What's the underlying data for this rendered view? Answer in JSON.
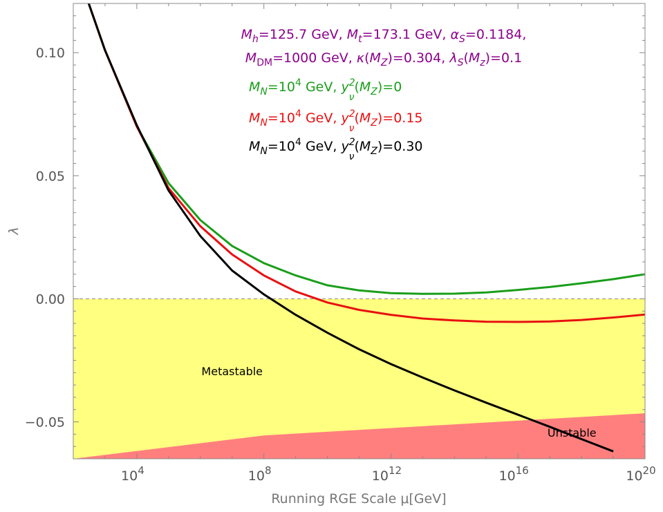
{
  "chart_data": {
    "type": "line",
    "title": "",
    "xlabel": "Running RGE Scale μ[GeV]",
    "ylabel": "λ",
    "x_scale": "log",
    "xlim": [
      100,
      1e+20
    ],
    "ylim": [
      -0.065,
      0.12
    ],
    "grid": false,
    "x_ticks": [
      {
        "value": 10000,
        "base": "10",
        "exp": "4"
      },
      {
        "value": 100000000.0,
        "base": "10",
        "exp": "8"
      },
      {
        "value": 1000000000000.0,
        "base": "10",
        "exp": "12"
      },
      {
        "value": 1e+16,
        "base": "10",
        "exp": "16"
      },
      {
        "value": 1e+20,
        "base": "10",
        "exp": "20"
      }
    ],
    "y_ticks": [
      {
        "value": 0.1,
        "label": "0.10"
      },
      {
        "value": 0.05,
        "label": "0.05"
      },
      {
        "value": 0.0,
        "label": "0.00"
      },
      {
        "value": -0.05,
        "label": "−0.05"
      }
    ],
    "annotations": {
      "params_line1": [
        {
          "t": "M",
          "s": "i"
        },
        {
          "t": "h",
          "s": "sub-i"
        },
        {
          "t": "=125.7 GeV, "
        },
        {
          "t": "M",
          "s": "i"
        },
        {
          "t": "t",
          "s": "sub-i"
        },
        {
          "t": "=173.1 GeV, "
        },
        {
          "t": "α",
          "s": "i"
        },
        {
          "t": "S",
          "s": "sub-i"
        },
        {
          "t": "=0.1184,"
        }
      ],
      "params_line2": [
        {
          "t": "M",
          "s": "i"
        },
        {
          "t": "DM",
          "s": "sub"
        },
        {
          "t": "=1000 GeV, "
        },
        {
          "t": "κ",
          "s": "i"
        },
        {
          "t": "("
        },
        {
          "t": "M",
          "s": "i"
        },
        {
          "t": "Z",
          "s": "sub-i"
        },
        {
          "t": ")=0.304, "
        },
        {
          "t": "λ",
          "s": "i"
        },
        {
          "t": "S",
          "s": "sub-i"
        },
        {
          "t": "("
        },
        {
          "t": "M",
          "s": "i"
        },
        {
          "t": "z",
          "s": "sub-i"
        },
        {
          "t": ")=0.1"
        }
      ],
      "params_color": "#8b008b"
    },
    "series": [
      {
        "legend_label": [
          {
            "t": "M",
            "s": "i"
          },
          {
            "t": "N",
            "s": "sub-i"
          },
          {
            "t": "=10"
          },
          {
            "t": "4",
            "s": "sup"
          },
          {
            "t": " GeV, "
          },
          {
            "t": "y",
            "s": "i"
          },
          {
            "t": "2",
            "s": "supsub-sup"
          },
          {
            "t": "ν",
            "s": "supsub-sub"
          },
          {
            "t": "("
          },
          {
            "t": "M",
            "s": "i"
          },
          {
            "t": "Z",
            "s": "sub-i"
          },
          {
            "t": ")=0"
          }
        ],
        "color": "#1a9e1a",
        "x": [
          100,
          1000,
          10000,
          100000,
          1000000.0,
          10000000.0,
          100000000.0,
          1000000000.0,
          10000000000.0,
          100000000000.0,
          1000000000000.0,
          10000000000000.0,
          100000000000000.0,
          1000000000000000.0,
          1e+16,
          1e+17,
          1e+18,
          1e+19,
          1e+20
        ],
        "y": [
          0.138,
          0.101,
          0.07,
          0.047,
          0.032,
          0.0215,
          0.0145,
          0.0095,
          0.0055,
          0.0034,
          0.0023,
          0.002,
          0.0021,
          0.0026,
          0.0036,
          0.0048,
          0.0063,
          0.008,
          0.01
        ]
      },
      {
        "legend_label": [
          {
            "t": "M",
            "s": "i"
          },
          {
            "t": "N",
            "s": "sub-i"
          },
          {
            "t": "=10"
          },
          {
            "t": "4",
            "s": "sup"
          },
          {
            "t": " GeV, "
          },
          {
            "t": "y",
            "s": "i"
          },
          {
            "t": "2",
            "s": "supsub-sup"
          },
          {
            "t": "ν",
            "s": "supsub-sub"
          },
          {
            "t": "("
          },
          {
            "t": "M",
            "s": "i"
          },
          {
            "t": "Z",
            "s": "sub-i"
          },
          {
            "t": ")=0.15"
          }
        ],
        "color": "#e81010",
        "x": [
          100,
          1000,
          10000,
          100000,
          1000000.0,
          10000000.0,
          100000000.0,
          1000000000.0,
          10000000000.0,
          100000000000.0,
          1000000000000.0,
          10000000000000.0,
          100000000000000.0,
          1000000000000000.0,
          1e+16,
          1e+17,
          1e+18,
          1e+19,
          1e+20
        ],
        "y": [
          0.138,
          0.101,
          0.07,
          0.045,
          0.0295,
          0.018,
          0.0095,
          0.003,
          -0.0015,
          -0.0045,
          -0.0065,
          -0.008,
          -0.0088,
          -0.0093,
          -0.0094,
          -0.0092,
          -0.0086,
          -0.0076,
          -0.0064
        ]
      },
      {
        "legend_label": [
          {
            "t": "M",
            "s": "i"
          },
          {
            "t": "N",
            "s": "sub-i"
          },
          {
            "t": "=10"
          },
          {
            "t": "4",
            "s": "sup"
          },
          {
            "t": " GeV, "
          },
          {
            "t": "y",
            "s": "i"
          },
          {
            "t": "2",
            "s": "supsub-sup"
          },
          {
            "t": "ν",
            "s": "supsub-sub"
          },
          {
            "t": "("
          },
          {
            "t": "M",
            "s": "i"
          },
          {
            "t": "Z",
            "s": "sub-i"
          },
          {
            "t": ")=0.30"
          }
        ],
        "color": "#000000",
        "x": [
          100,
          1000,
          10000,
          100000,
          1000000.0,
          10000000.0,
          100000000.0,
          1000000000.0,
          10000000000.0,
          100000000000.0,
          1000000000000.0,
          10000000000000.0,
          100000000000000.0,
          1000000000000000.0,
          1e+16,
          1e+17,
          1e+18,
          1e+19
        ],
        "y": [
          0.138,
          0.101,
          0.0705,
          0.044,
          0.0255,
          0.0115,
          0.0018,
          -0.0065,
          -0.0138,
          -0.0205,
          -0.0265,
          -0.032,
          -0.0372,
          -0.0422,
          -0.0471,
          -0.052,
          -0.057,
          -0.062
        ]
      }
    ],
    "regions": [
      {
        "name": "metastable",
        "label": "Metastable",
        "color": "#ffff80",
        "y_top": 0.0,
        "label_at": {
          "x": 10000000.0,
          "y": -0.031
        }
      },
      {
        "name": "unstable",
        "label": "Unstable",
        "color": "#ff7f7f",
        "boundary": {
          "x": [
            100,
            100000000.0,
            1e+20
          ],
          "y": [
            -0.065,
            -0.0555,
            -0.0465
          ]
        },
        "label_at": {
          "x": 5e+17,
          "y": -0.056
        }
      }
    ],
    "zero_line": {
      "y": 0.0,
      "style": "dashed",
      "color": "#888888"
    }
  }
}
